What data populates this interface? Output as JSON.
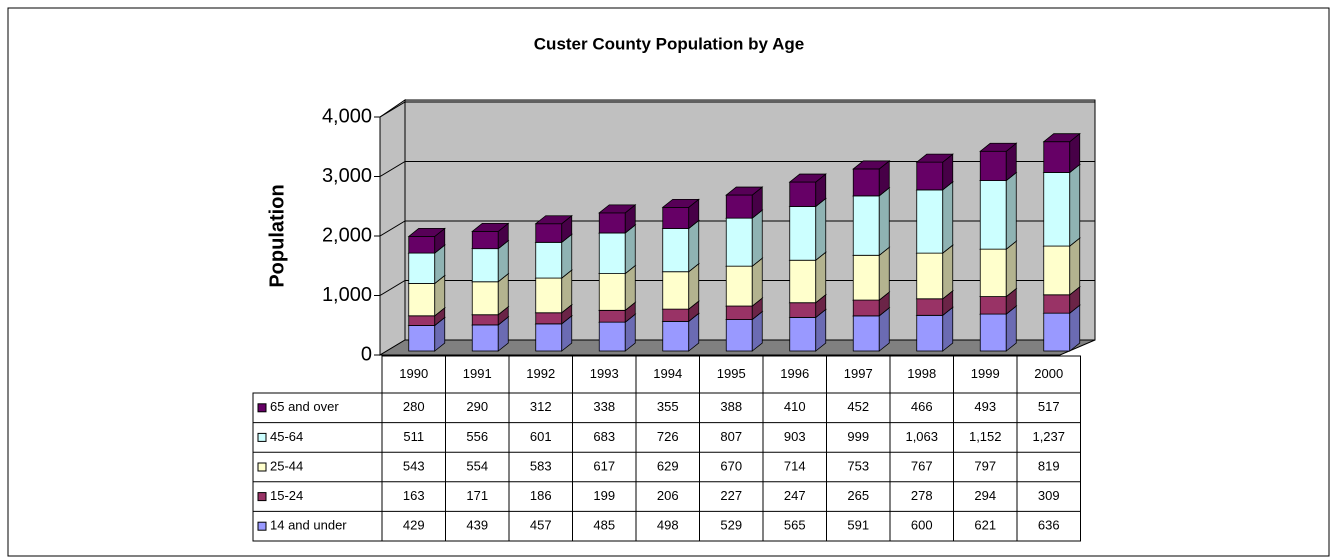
{
  "chart_data": {
    "type": "bar",
    "stacked": true,
    "title": "Custer County Population by Age",
    "y_label": "Population",
    "categories": [
      "1990",
      "1991",
      "1992",
      "1993",
      "1994",
      "1995",
      "1996",
      "1997",
      "1998",
      "1999",
      "2000"
    ],
    "series": [
      {
        "name": "65 and over",
        "color": "#660066",
        "values": [
          280,
          290,
          312,
          338,
          355,
          388,
          410,
          452,
          466,
          493,
          517
        ]
      },
      {
        "name": "45-64",
        "color": "#ccffff",
        "values": [
          511,
          556,
          601,
          683,
          726,
          807,
          903,
          999,
          1063,
          1152,
          1237
        ],
        "value_labels": [
          "511",
          "556",
          "601",
          "683",
          "726",
          "807",
          "903",
          "999",
          "1,063",
          "1,152",
          "1,237"
        ]
      },
      {
        "name": "25-44",
        "color": "#ffffcc",
        "values": [
          543,
          554,
          583,
          617,
          629,
          670,
          714,
          753,
          767,
          797,
          819
        ]
      },
      {
        "name": "15-24",
        "color": "#993366",
        "values": [
          163,
          171,
          186,
          199,
          206,
          227,
          247,
          265,
          278,
          294,
          309
        ]
      },
      {
        "name": "14 and under",
        "color": "#9999ff",
        "values": [
          429,
          439,
          457,
          485,
          498,
          529,
          565,
          591,
          600,
          621,
          636
        ]
      }
    ],
    "ylim": [
      0,
      4000
    ],
    "yticks": [
      0,
      {
        "value": 1000,
        "label": "1,000"
      },
      {
        "value": 2000,
        "label": "2,000"
      },
      {
        "value": 3000,
        "label": "3,000"
      },
      {
        "value": 4000,
        "label": "4,000"
      }
    ],
    "grid": true
  }
}
